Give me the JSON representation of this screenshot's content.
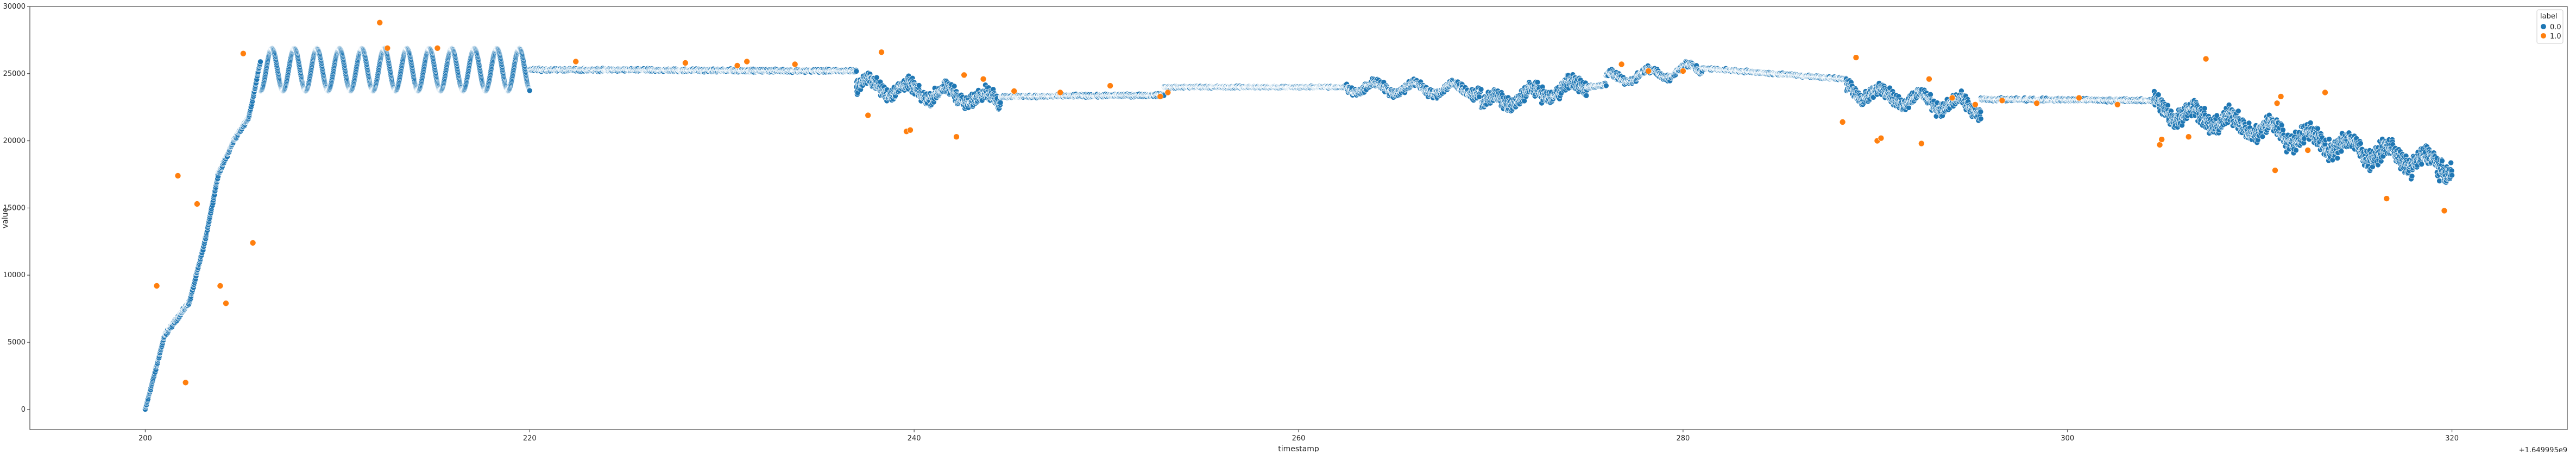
{
  "chart_data": {
    "type": "scatter",
    "xlabel": "timestamp",
    "ylabel": "value",
    "x_offset_text": "+1.649995e9",
    "xlim": [
      194,
      326
    ],
    "ylim": [
      -1500,
      30000
    ],
    "x_ticks": [
      200,
      220,
      240,
      260,
      280,
      300,
      320
    ],
    "y_ticks": [
      0,
      5000,
      10000,
      15000,
      20000,
      25000,
      30000
    ],
    "grid": false,
    "legend": {
      "title": "label",
      "placement": "top-right",
      "entries": [
        {
          "label": "0.0",
          "color": "#1f77b4"
        },
        {
          "label": "1.0",
          "color": "#ff7f0e"
        }
      ]
    },
    "series": [
      {
        "name": "0.0",
        "color": "#1f77b4",
        "segments": [
          {
            "x_start": 200.0,
            "x_end": 206.0,
            "kind": "rise",
            "y_points": [
              [
                200.0,
                0
              ],
              [
                201.0,
                5500
              ],
              [
                202.3,
                8000
              ],
              [
                203.1,
                12500
              ],
              [
                203.8,
                17500
              ],
              [
                204.6,
                20000
              ],
              [
                205.4,
                21800
              ],
              [
                206.0,
                26000
              ]
            ],
            "noise": 500
          },
          {
            "x_start": 206.0,
            "x_end": 220.0,
            "kind": "sine",
            "center": 25300,
            "amp": 1600,
            "period": 1.17,
            "noise": 0
          },
          {
            "x_start": 220.0,
            "x_end": 237.0,
            "kind": "flat",
            "y_start": 25300,
            "y_end": 25200,
            "noise": 150
          },
          {
            "x_start": 237.0,
            "x_end": 244.5,
            "kind": "band",
            "y_start": 24200,
            "y_end": 23000,
            "noise": 1400,
            "wobble": 500
          },
          {
            "x_start": 244.5,
            "x_end": 253.0,
            "kind": "flat",
            "y_start": 23300,
            "y_end": 23400,
            "noise": 150
          },
          {
            "x_start": 253.0,
            "x_end": 262.5,
            "kind": "flat",
            "y_start": 24000,
            "y_end": 24000,
            "noise": 100
          },
          {
            "x_start": 262.5,
            "x_end": 269.5,
            "kind": "band",
            "y_start": 24000,
            "y_end": 23800,
            "noise": 900,
            "wobble": 400
          },
          {
            "x_start": 269.5,
            "x_end": 275.0,
            "kind": "band",
            "y_start": 22700,
            "y_end": 24200,
            "noise": 1500,
            "wobble": 500
          },
          {
            "x_start": 275.0,
            "x_end": 276.0,
            "kind": "flat",
            "y_start": 24000,
            "y_end": 24200,
            "noise": 200
          },
          {
            "x_start": 276.0,
            "x_end": 281.0,
            "kind": "band",
            "y_start": 24600,
            "y_end": 25400,
            "noise": 700,
            "wobble": 400
          },
          {
            "x_start": 281.0,
            "x_end": 288.5,
            "kind": "flat",
            "y_start": 25400,
            "y_end": 24600,
            "noise": 120
          },
          {
            "x_start": 288.5,
            "x_end": 295.5,
            "kind": "band",
            "y_start": 23800,
            "y_end": 22400,
            "noise": 1400,
            "wobble": 500
          },
          {
            "x_start": 295.5,
            "x_end": 304.5,
            "kind": "flat",
            "y_start": 23100,
            "y_end": 23000,
            "noise": 150
          },
          {
            "x_start": 304.5,
            "x_end": 320.0,
            "kind": "band",
            "y_start": 22500,
            "y_end": 18000,
            "noise": 2000,
            "wobble": 600
          }
        ]
      },
      {
        "name": "1.0",
        "color": "#ff7f0e",
        "points": [
          [
            200.6,
            9200
          ],
          [
            201.7,
            17400
          ],
          [
            202.1,
            2000
          ],
          [
            202.7,
            15300
          ],
          [
            203.9,
            9200
          ],
          [
            204.2,
            7900
          ],
          [
            205.1,
            26500
          ],
          [
            205.6,
            12400
          ],
          [
            212.2,
            28800
          ],
          [
            212.6,
            26900
          ],
          [
            215.2,
            26900
          ],
          [
            222.4,
            25900
          ],
          [
            228.1,
            25800
          ],
          [
            230.8,
            25600
          ],
          [
            231.3,
            25900
          ],
          [
            233.8,
            25700
          ],
          [
            237.6,
            21900
          ],
          [
            238.3,
            26600
          ],
          [
            239.6,
            20700
          ],
          [
            239.8,
            20800
          ],
          [
            242.2,
            20300
          ],
          [
            242.6,
            24900
          ],
          [
            243.6,
            24600
          ],
          [
            245.2,
            23700
          ],
          [
            247.6,
            23600
          ],
          [
            250.2,
            24100
          ],
          [
            252.8,
            23300
          ],
          [
            253.2,
            23600
          ],
          [
            276.8,
            25700
          ],
          [
            278.2,
            25200
          ],
          [
            280.0,
            25200
          ],
          [
            288.3,
            21400
          ],
          [
            289.0,
            26200
          ],
          [
            290.1,
            20000
          ],
          [
            290.3,
            20200
          ],
          [
            292.4,
            19800
          ],
          [
            292.8,
            24600
          ],
          [
            294.0,
            23200
          ],
          [
            295.2,
            22700
          ],
          [
            296.6,
            23000
          ],
          [
            298.4,
            22800
          ],
          [
            300.6,
            23200
          ],
          [
            302.6,
            22700
          ],
          [
            304.8,
            19700
          ],
          [
            304.9,
            20100
          ],
          [
            306.3,
            20300
          ],
          [
            307.2,
            26100
          ],
          [
            310.8,
            17800
          ],
          [
            310.9,
            22800
          ],
          [
            311.1,
            23300
          ],
          [
            313.4,
            23600
          ],
          [
            316.6,
            15700
          ],
          [
            319.6,
            14800
          ],
          [
            312.5,
            19300
          ]
        ]
      }
    ]
  }
}
